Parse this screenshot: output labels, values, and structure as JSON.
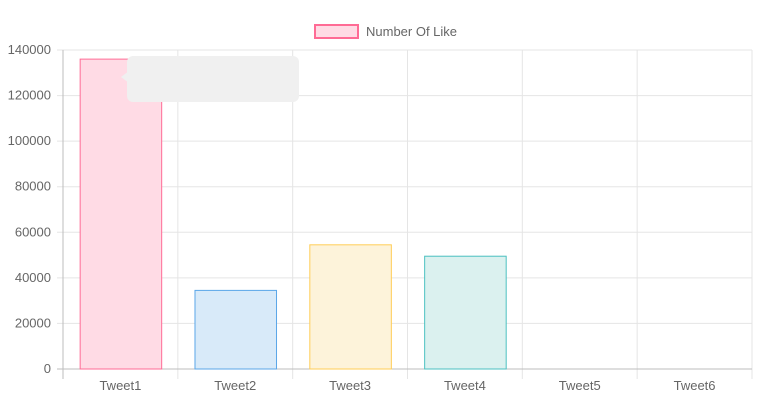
{
  "chart_data": {
    "type": "bar",
    "categories": [
      "Tweet1",
      "Tweet2",
      "Tweet3",
      "Tweet4",
      "Tweet5",
      "Tweet6"
    ],
    "series": [
      {
        "name": "Number Of Like",
        "values": [
          136000,
          34500,
          54500,
          49500,
          0,
          0
        ]
      }
    ],
    "ylim": [
      0,
      140000
    ],
    "yticks": [
      "0",
      "20000",
      "40000",
      "60000",
      "80000",
      "100000",
      "120000",
      "140000"
    ],
    "grid": true,
    "legend_position": "top",
    "bar_fill_colors": [
      "#ffdbe5",
      "#d8eaf9",
      "#fdf3da",
      "#dbf1ef",
      "#ece6ff",
      "#ffecd9"
    ],
    "bar_stroke_colors": [
      "#ff6b95",
      "#5aa6e8",
      "#ffcd56",
      "#4bc0c0",
      "#9966ff",
      "#ff9f40"
    ],
    "legend_fill": "#ffdbe5",
    "legend_stroke": "#ff6b95"
  }
}
